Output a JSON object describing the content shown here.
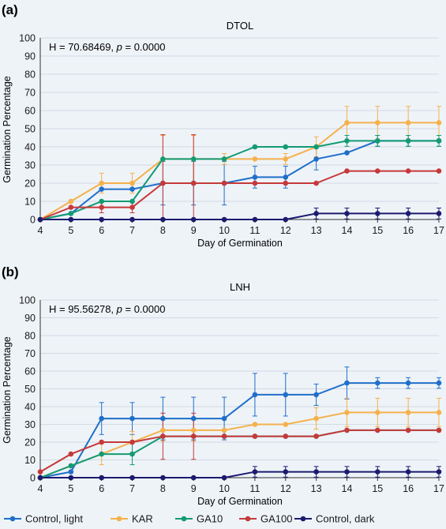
{
  "chart_data": [
    {
      "type": "line",
      "panel_label": "(a)",
      "title": "DTOL",
      "stat_prefix": "H = 70.68469, ",
      "stat_p": "p",
      "stat_suffix": " = 0.0000",
      "xlabel": "Day of Germination",
      "ylabel": "Germination Percentage",
      "x": [
        4,
        5,
        6,
        7,
        8,
        9,
        10,
        11,
        12,
        13,
        14,
        15,
        16,
        17
      ],
      "xlim": [
        4,
        17
      ],
      "ylim": [
        0,
        100
      ],
      "yticks": [
        0,
        10,
        20,
        30,
        40,
        50,
        60,
        70,
        80,
        90,
        100
      ],
      "grid": true,
      "series": [
        {
          "name": "Control, light",
          "color": "#1f6fc9",
          "values": [
            0,
            3.3,
            16.7,
            16.7,
            20,
            20,
            20,
            23.3,
            23.3,
            33.3,
            36.7,
            43.3,
            43.3,
            43.3
          ],
          "err": [
            0,
            0,
            0,
            0,
            12,
            12,
            12,
            6,
            6,
            6,
            0,
            3,
            3,
            3
          ]
        },
        {
          "name": "KAR",
          "color": "#f5b14c",
          "values": [
            0,
            10,
            20,
            20,
            33.3,
            33.3,
            33.3,
            33.3,
            33.3,
            40,
            53.3,
            53.3,
            53.3,
            53.3
          ],
          "err": [
            0,
            0,
            5.5,
            5.5,
            13,
            13,
            3,
            0,
            3,
            5.5,
            9,
            9,
            9,
            9
          ]
        },
        {
          "name": "GA10",
          "color": "#139b72",
          "values": [
            0,
            3.3,
            10,
            10,
            33.3,
            33.3,
            33.3,
            40,
            40,
            40,
            43.3,
            43.3,
            43.3,
            43.3
          ],
          "err": [
            0,
            0,
            0,
            0,
            0,
            0,
            0,
            0,
            0,
            0,
            3,
            3,
            3,
            3
          ]
        },
        {
          "name": "GA100",
          "color": "#c6393a",
          "values": [
            0,
            6.7,
            6.7,
            6.7,
            20,
            20,
            20,
            20,
            20,
            20,
            26.7,
            26.7,
            26.7,
            26.7
          ],
          "err": [
            0,
            0,
            3,
            3,
            26.7,
            26.7,
            0,
            0,
            0,
            0,
            0,
            0,
            0,
            0
          ]
        },
        {
          "name": "Control, dark",
          "color": "#1c1b6e",
          "values": [
            0,
            0,
            0,
            0,
            0,
            0,
            0,
            0,
            0,
            3.3,
            3.3,
            3.3,
            3.3,
            3.3
          ],
          "err": [
            0,
            0,
            0,
            0,
            0,
            0,
            0,
            0,
            0,
            3,
            3,
            3,
            3,
            3
          ]
        }
      ]
    },
    {
      "type": "line",
      "panel_label": "(b)",
      "title": "LNH",
      "stat_prefix": "H = 95.56278, ",
      "stat_p": "p",
      "stat_suffix": " = 0.0000",
      "xlabel": "Day of Germination",
      "ylabel": "Germination Percentage",
      "x": [
        4,
        5,
        6,
        7,
        8,
        9,
        10,
        11,
        12,
        13,
        14,
        15,
        16,
        17
      ],
      "xlim": [
        4,
        17
      ],
      "ylim": [
        0,
        100
      ],
      "yticks": [
        0,
        10,
        20,
        30,
        40,
        50,
        60,
        70,
        80,
        90,
        100
      ],
      "grid": true,
      "series": [
        {
          "name": "Control, light",
          "color": "#1f6fc9",
          "values": [
            0,
            3.3,
            33.3,
            33.3,
            33.3,
            33.3,
            33.3,
            46.7,
            46.7,
            46.7,
            53.3,
            53.3,
            53.3,
            53.3
          ],
          "err": [
            0,
            0,
            9,
            9,
            12,
            12,
            12,
            12,
            12,
            6,
            9,
            3,
            3,
            3
          ]
        },
        {
          "name": "KAR",
          "color": "#f5b14c",
          "values": [
            0,
            6.7,
            13.3,
            20,
            26.7,
            26.7,
            26.7,
            30,
            30,
            33.3,
            36.7,
            36.7,
            36.7,
            36.7
          ],
          "err": [
            0,
            0,
            6,
            6,
            6,
            6,
            0,
            0,
            0,
            6,
            8,
            8,
            8,
            8
          ]
        },
        {
          "name": "GA10",
          "color": "#139b72",
          "values": [
            0,
            6.7,
            13.3,
            13.3,
            23.3,
            23.3,
            23.3,
            23.3,
            23.3,
            23.3,
            26.7,
            26.7,
            26.7,
            26.7
          ],
          "err": [
            0,
            0,
            0,
            6,
            0,
            0,
            0,
            0,
            0,
            0,
            0,
            0,
            0,
            0
          ]
        },
        {
          "name": "GA100",
          "color": "#c6393a",
          "values": [
            3.3,
            13.3,
            20,
            20,
            23.3,
            23.3,
            23.3,
            23.3,
            23.3,
            23.3,
            26.7,
            26.7,
            26.7,
            26.7
          ],
          "err": [
            0,
            0,
            0,
            0,
            13,
            13,
            0,
            0,
            0,
            0,
            0,
            0,
            0,
            0
          ]
        },
        {
          "name": "Control, dark",
          "color": "#1c1b6e",
          "values": [
            0,
            0,
            0,
            0,
            0,
            0,
            0,
            3.3,
            3.3,
            3.3,
            3.3,
            3.3,
            3.3,
            3.3
          ],
          "err": [
            0,
            0,
            0,
            0,
            0,
            0,
            0,
            3,
            3,
            3,
            3,
            3,
            3,
            3
          ]
        }
      ]
    }
  ],
  "legend": [
    {
      "name": "Control, light",
      "color": "#1f6fc9"
    },
    {
      "name": "KAR",
      "color": "#f5b14c"
    },
    {
      "name": "GA10",
      "color": "#139b72"
    },
    {
      "name": "GA100",
      "color": "#c6393a"
    },
    {
      "name": "Control, dark",
      "color": "#1c1b6e"
    }
  ]
}
